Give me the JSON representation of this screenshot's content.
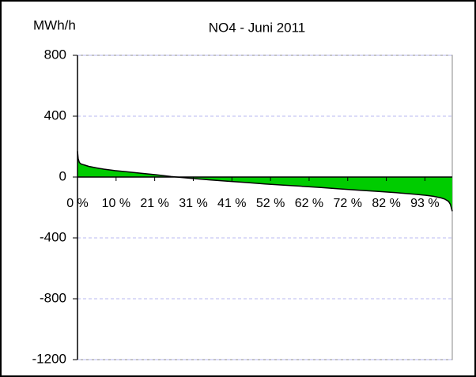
{
  "chart_data": {
    "type": "area",
    "title": "NO4 - Juni 2011",
    "y_label": "MWh/h",
    "x": [
      0,
      0.2,
      0.5,
      1,
      2,
      3,
      5,
      7,
      10,
      13,
      17,
      21,
      25,
      30,
      35,
      40,
      45,
      50,
      55,
      60,
      65,
      70,
      75,
      80,
      85,
      90,
      93,
      95,
      97,
      98,
      99,
      99.5,
      100
    ],
    "values": [
      170,
      120,
      95,
      85,
      78,
      70,
      60,
      52,
      42,
      35,
      25,
      15,
      3,
      -8,
      -18,
      -27,
      -36,
      -45,
      -53,
      -61,
      -69,
      -78,
      -86,
      -94,
      -103,
      -113,
      -120,
      -127,
      -137,
      -145,
      -160,
      -180,
      -225
    ],
    "color": "#00cc00",
    "xlim": [
      0,
      100
    ],
    "xticks": [
      {
        "value": 0,
        "label": "0 %"
      },
      {
        "value": 10.3,
        "label": "10 %"
      },
      {
        "value": 20.6,
        "label": "21 %"
      },
      {
        "value": 30.9,
        "label": "31 %"
      },
      {
        "value": 41.2,
        "label": "41 %"
      },
      {
        "value": 51.5,
        "label": "52 %"
      },
      {
        "value": 61.8,
        "label": "62 %"
      },
      {
        "value": 72.1,
        "label": "72 %"
      },
      {
        "value": 82.4,
        "label": "82 %"
      },
      {
        "value": 92.7,
        "label": "93 %"
      }
    ],
    "ylim": [
      -1200,
      800
    ],
    "yticks": [
      800,
      400,
      0,
      -400,
      -800,
      -1200
    ],
    "grid": true
  }
}
